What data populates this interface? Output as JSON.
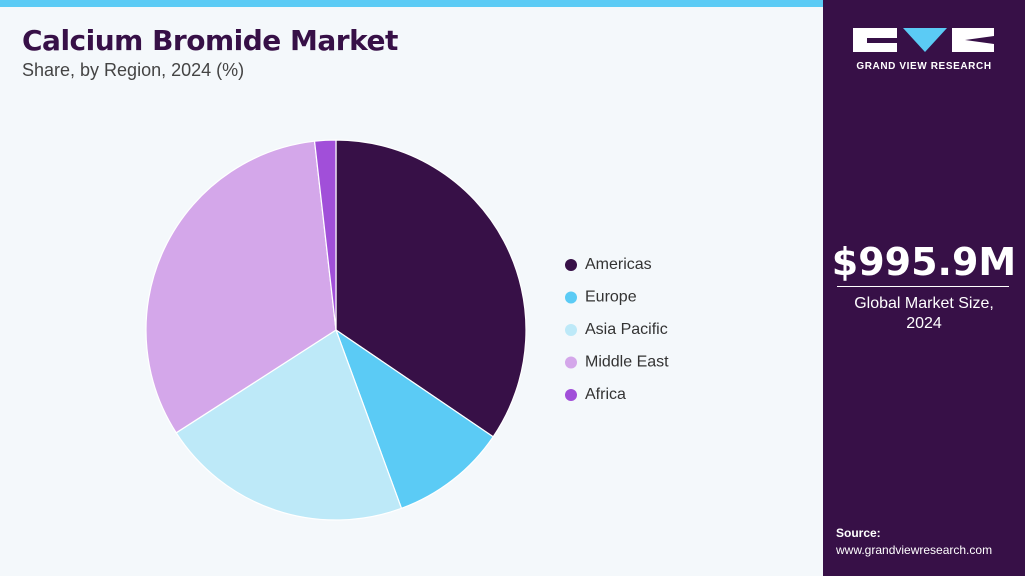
{
  "chart_data": {
    "type": "pie",
    "title": "Calcium Bromide Market",
    "subtitle": "Share, by Region, 2024 (%)",
    "categories": [
      "Americas",
      "Europe",
      "Asia Pacific",
      "Middle East",
      "Africa"
    ],
    "values": [
      34.5,
      9.9,
      21.5,
      32.3,
      1.8
    ],
    "colors": [
      "#371047",
      "#5bcbf5",
      "#bde9f8",
      "#d4a7ea",
      "#a14fd9"
    ]
  },
  "sidebar": {
    "logo": "GRAND VIEW RESEARCH",
    "market_size": "$995.9M",
    "market_size_label": "Global Market Size, 2024",
    "source_label": "Source:",
    "source": "www.grandviewresearch.com"
  }
}
